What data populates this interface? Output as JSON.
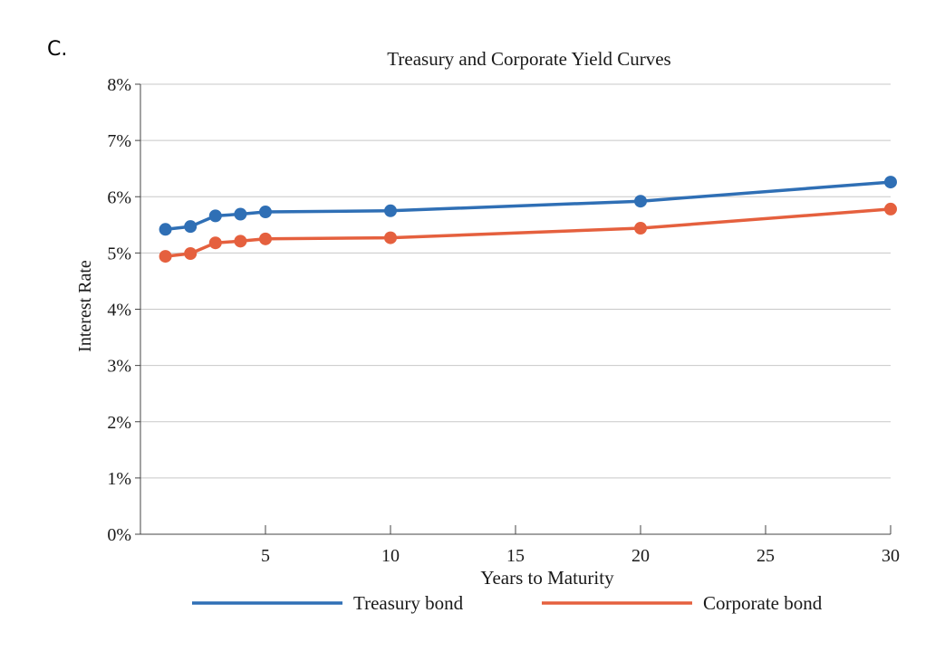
{
  "question_label": "C.",
  "chart_data": {
    "type": "line",
    "title": "Treasury and Corporate Yield Curves",
    "xlabel": "Years to Maturity",
    "ylabel": "Interest Rate",
    "xlim": [
      0,
      30
    ],
    "ylim": [
      0,
      8
    ],
    "x_ticks": [
      5,
      10,
      15,
      20,
      25,
      30
    ],
    "y_ticks": [
      0,
      1,
      2,
      3,
      4,
      5,
      6,
      7,
      8
    ],
    "y_tick_labels": [
      "0%",
      "1%",
      "2%",
      "3%",
      "4%",
      "5%",
      "6%",
      "7%",
      "8%"
    ],
    "grid": true,
    "legend_position": "bottom",
    "series": [
      {
        "name": "Treasury bond",
        "color": "#2f6fb5",
        "x": [
          1,
          2,
          3,
          4,
          5,
          10,
          20,
          30
        ],
        "y": [
          5.42,
          5.47,
          5.66,
          5.69,
          5.73,
          5.75,
          5.92,
          6.26
        ]
      },
      {
        "name": "Corporate bond",
        "color": "#e5603e",
        "x": [
          1,
          2,
          3,
          4,
          5,
          10,
          20,
          30
        ],
        "y": [
          4.94,
          4.99,
          5.18,
          5.21,
          5.25,
          5.27,
          5.44,
          5.78
        ]
      }
    ]
  }
}
